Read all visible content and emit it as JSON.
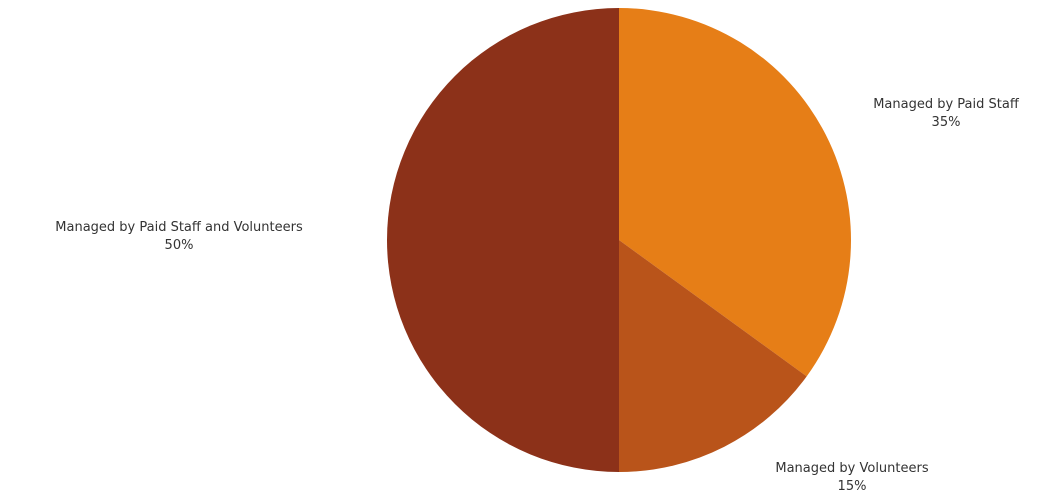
{
  "chart_data": {
    "type": "pie",
    "title": "",
    "slices": [
      {
        "label": "Managed by Paid Staff",
        "value": 35,
        "value_label": "35%",
        "color": "#E67E17"
      },
      {
        "label": "Managed by Volunteers",
        "value": 15,
        "value_label": "15%",
        "color": "#B9541A"
      },
      {
        "label": "Managed by Paid Staff and Volunteers",
        "value": 50,
        "value_label": "50%",
        "color": "#8C3119"
      }
    ],
    "start_angle": "12 o'clock",
    "direction": "clockwise",
    "legend": "none",
    "labels_outside": true
  }
}
